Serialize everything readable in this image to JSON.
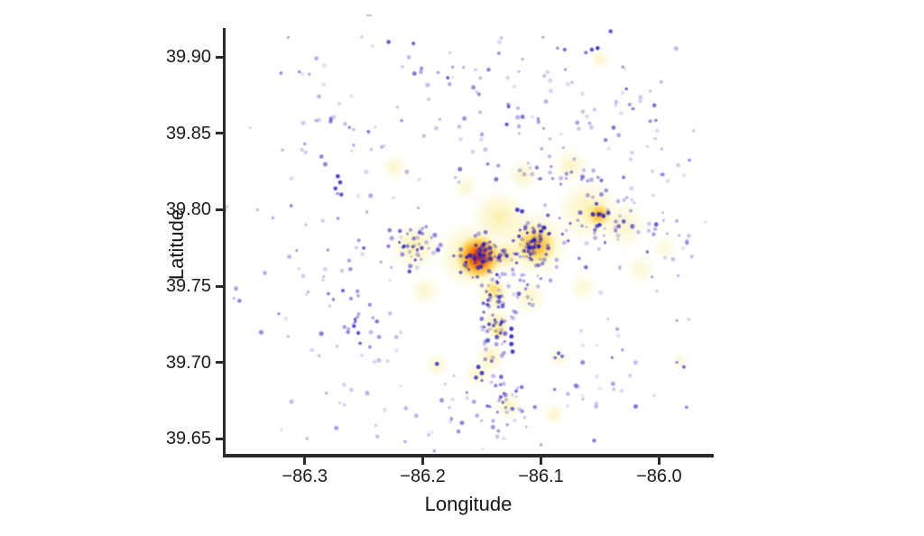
{
  "chart_data": {
    "type": "scatter",
    "subtype": "scatter-with-density-heatmap",
    "title": "",
    "xlabel": "Longitude",
    "ylabel": "Latitude",
    "xlim": [
      -86.367,
      -85.956
    ],
    "ylim": [
      39.64,
      39.918
    ],
    "grid": false,
    "legend": false,
    "xticks": [
      {
        "value": -86.3,
        "label": "−86.3"
      },
      {
        "value": -86.2,
        "label": "−86.2"
      },
      {
        "value": -86.1,
        "label": "−86.1"
      },
      {
        "value": -86.0,
        "label": "−86.0"
      }
    ],
    "yticks": [
      {
        "value": 39.9,
        "label": "39.90"
      },
      {
        "value": 39.85,
        "label": "39.85"
      },
      {
        "value": 39.8,
        "label": "39.80"
      },
      {
        "value": 39.75,
        "label": "39.75"
      },
      {
        "value": 39.7,
        "label": "39.70"
      },
      {
        "value": 39.65,
        "label": "39.65"
      }
    ],
    "point_color": "38,28,196",
    "heat_gradients": {
      "red": [
        [
          0,
          "rgba(200,30,0,0.95)"
        ],
        [
          0.32,
          "rgba(235,88,0,0.92)"
        ],
        [
          0.55,
          "rgba(255,158,10,0.82)"
        ],
        [
          0.8,
          "rgba(255,214,80,0.55)"
        ],
        [
          1,
          "rgba(255,240,160,0)"
        ]
      ],
      "orange": [
        [
          0,
          "rgba(238,140,0,0.85)"
        ],
        [
          0.4,
          "rgba(255,190,40,0.7)"
        ],
        [
          0.75,
          "rgba(255,226,110,0.45)"
        ],
        [
          1,
          "rgba(255,240,160,0)"
        ]
      ],
      "amber": [
        [
          0,
          "rgba(248,195,40,0.6)"
        ],
        [
          0.55,
          "rgba(255,230,120,0.4)"
        ],
        [
          1,
          "rgba(255,242,170,0)"
        ]
      ],
      "yellow": [
        [
          0,
          "rgba(250,233,140,1)"
        ],
        [
          0.55,
          "rgba(252,240,170,0.55)"
        ],
        [
          1,
          "rgba(255,245,190,0)"
        ]
      ]
    },
    "heat_blobs": [
      {
        "lon": -86.224,
        "lat": 39.828,
        "r": 0.012,
        "kind": "yellow",
        "a": 0.5
      },
      {
        "lon": -86.207,
        "lat": 39.776,
        "r": 0.022,
        "kind": "yellow",
        "a": 0.7
      },
      {
        "lon": -86.198,
        "lat": 39.747,
        "r": 0.014,
        "kind": "yellow",
        "a": 0.5
      },
      {
        "lon": -86.188,
        "lat": 39.698,
        "r": 0.011,
        "kind": "yellow",
        "a": 0.5
      },
      {
        "lon": -86.16,
        "lat": 39.77,
        "r": 0.03,
        "kind": "yellow",
        "a": 0.85
      },
      {
        "lon": -86.135,
        "lat": 39.795,
        "r": 0.025,
        "kind": "yellow",
        "a": 0.75
      },
      {
        "lon": -86.105,
        "lat": 39.778,
        "r": 0.03,
        "kind": "yellow",
        "a": 0.85
      },
      {
        "lon": -86.14,
        "lat": 39.745,
        "r": 0.016,
        "kind": "yellow",
        "a": 0.8
      },
      {
        "lon": -86.138,
        "lat": 39.726,
        "r": 0.014,
        "kind": "yellow",
        "a": 0.8
      },
      {
        "lon": -86.143,
        "lat": 39.703,
        "r": 0.013,
        "kind": "yellow",
        "a": 0.7
      },
      {
        "lon": -86.153,
        "lat": 39.692,
        "r": 0.012,
        "kind": "yellow",
        "a": 0.55
      },
      {
        "lon": -86.128,
        "lat": 39.672,
        "r": 0.013,
        "kind": "yellow",
        "a": 0.6
      },
      {
        "lon": -86.089,
        "lat": 39.666,
        "r": 0.01,
        "kind": "yellow",
        "a": 0.5
      },
      {
        "lon": -86.085,
        "lat": 39.703,
        "r": 0.009,
        "kind": "yellow",
        "a": 0.45
      },
      {
        "lon": -86.06,
        "lat": 39.8,
        "r": 0.028,
        "kind": "yellow",
        "a": 0.7
      },
      {
        "lon": -86.03,
        "lat": 39.79,
        "r": 0.022,
        "kind": "yellow",
        "a": 0.5
      },
      {
        "lon": -86.016,
        "lat": 39.761,
        "r": 0.014,
        "kind": "yellow",
        "a": 0.4
      },
      {
        "lon": -85.995,
        "lat": 39.775,
        "r": 0.012,
        "kind": "yellow",
        "a": 0.35
      },
      {
        "lon": -86.05,
        "lat": 39.899,
        "r": 0.009,
        "kind": "yellow",
        "a": 0.5
      },
      {
        "lon": -86.075,
        "lat": 39.829,
        "r": 0.016,
        "kind": "yellow",
        "a": 0.55
      },
      {
        "lon": -86.115,
        "lat": 39.823,
        "r": 0.014,
        "kind": "yellow",
        "a": 0.55
      },
      {
        "lon": -85.982,
        "lat": 39.701,
        "r": 0.008,
        "kind": "yellow",
        "a": 0.4
      },
      {
        "lon": -86.065,
        "lat": 39.749,
        "r": 0.012,
        "kind": "yellow",
        "a": 0.45
      },
      {
        "lon": -86.164,
        "lat": 39.815,
        "r": 0.012,
        "kind": "yellow",
        "a": 0.45
      },
      {
        "lon": -86.11,
        "lat": 39.743,
        "r": 0.016,
        "kind": "yellow",
        "a": 0.55
      },
      {
        "lon": -86.14,
        "lat": 39.748,
        "r": 0.009,
        "kind": "amber",
        "a": 0.5
      },
      {
        "lon": -86.136,
        "lat": 39.72,
        "r": 0.008,
        "kind": "amber",
        "a": 0.5
      },
      {
        "lon": -86.131,
        "lat": 39.77,
        "r": 0.014,
        "kind": "amber",
        "a": 0.55
      },
      {
        "lon": -86.104,
        "lat": 39.777,
        "r": 0.018,
        "kind": "orange",
        "a": 0.9
      },
      {
        "lon": -86.051,
        "lat": 39.797,
        "r": 0.011,
        "kind": "orange",
        "a": 0.85
      },
      {
        "lon": -86.153,
        "lat": 39.769,
        "r": 0.02,
        "kind": "red",
        "a": 1.0
      }
    ],
    "point_clusters": [
      {
        "c": [
          -86.153,
          39.769
        ],
        "s": [
          0.01,
          0.008
        ],
        "n": 55,
        "a": [
          0.35,
          0.95
        ]
      },
      {
        "c": [
          -86.105,
          39.777
        ],
        "s": [
          0.012,
          0.009
        ],
        "n": 70,
        "a": [
          0.3,
          0.95
        ]
      },
      {
        "c": [
          -86.045,
          39.79
        ],
        "s": [
          0.022,
          0.012
        ],
        "n": 55,
        "a": [
          0.2,
          0.8
        ]
      },
      {
        "c": [
          -86.09,
          39.824
        ],
        "s": [
          0.035,
          0.004
        ],
        "n": 30,
        "a": [
          0.25,
          0.7
        ]
      },
      {
        "c": [
          -86.139,
          39.725
        ],
        "s": [
          0.007,
          0.022
        ],
        "n": 75,
        "a": [
          0.25,
          0.9
        ]
      },
      {
        "c": [
          -86.206,
          39.776
        ],
        "s": [
          0.011,
          0.011
        ],
        "n": 45,
        "a": [
          0.2,
          0.85
        ]
      },
      {
        "c": [
          -86.27,
          39.85
        ],
        "s": [
          0.04,
          0.035
        ],
        "n": 50,
        "a": [
          0.15,
          0.6
        ]
      },
      {
        "c": [
          -86.12,
          39.87
        ],
        "s": [
          0.05,
          0.025
        ],
        "n": 45,
        "a": [
          0.15,
          0.7
        ]
      },
      {
        "c": [
          -86.3,
          39.745
        ],
        "s": [
          0.03,
          0.04
        ],
        "n": 38,
        "a": [
          0.15,
          0.6
        ]
      },
      {
        "c": [
          -86.253,
          39.728
        ],
        "s": [
          0.02,
          0.02
        ],
        "n": 35,
        "a": [
          0.2,
          0.9
        ]
      },
      {
        "c": [
          -86.16,
          39.665
        ],
        "s": [
          0.05,
          0.018
        ],
        "n": 40,
        "a": [
          0.15,
          0.6
        ]
      },
      {
        "c": [
          -86.045,
          39.69
        ],
        "s": [
          0.03,
          0.025
        ],
        "n": 30,
        "a": [
          0.15,
          0.7
        ]
      },
      {
        "c": [
          -85.99,
          39.79
        ],
        "s": [
          0.015,
          0.03
        ],
        "n": 25,
        "a": [
          0.15,
          0.5
        ]
      },
      {
        "c": [
          -86.115,
          39.75
        ],
        "s": [
          0.012,
          0.01
        ],
        "n": 30,
        "a": [
          0.2,
          0.7
        ]
      },
      {
        "c": [
          -86.17,
          39.885
        ],
        "s": [
          0.03,
          0.02
        ],
        "n": 25,
        "a": [
          0.15,
          0.6
        ]
      },
      {
        "c": [
          -86.128,
          39.673
        ],
        "s": [
          0.008,
          0.008
        ],
        "n": 18,
        "a": [
          0.2,
          0.8
        ]
      },
      {
        "c": [
          -86.03,
          39.86
        ],
        "s": [
          0.03,
          0.02
        ],
        "n": 30,
        "a": [
          0.15,
          0.6
        ]
      }
    ],
    "points": [
      [
        -86.125,
        39.722,
        0.95,
        3
      ],
      [
        -86.125,
        39.717,
        0.95,
        3
      ],
      [
        -86.125,
        39.712,
        0.95,
        3
      ],
      [
        -86.124,
        39.707,
        0.9,
        3
      ],
      [
        -86.056,
        39.797,
        0.95,
        3
      ],
      [
        -86.051,
        39.797,
        0.95,
        3
      ],
      [
        -86.047,
        39.796,
        0.9,
        3
      ],
      [
        -86.043,
        39.798,
        0.85,
        3
      ],
      [
        -86.053,
        39.804,
        0.8,
        2.6
      ],
      [
        -86.05,
        39.79,
        0.6,
        2.4
      ],
      [
        -86.057,
        39.905,
        0.85,
        2.8
      ],
      [
        -86.052,
        39.906,
        0.9,
        2.8
      ],
      [
        -86.062,
        39.903,
        0.7,
        2.4
      ],
      [
        -86.08,
        39.905,
        0.7,
        2.6
      ],
      [
        -86.086,
        39.906,
        0.55,
        2.2
      ],
      [
        -86.041,
        39.917,
        0.8,
        2.8
      ],
      [
        -86.229,
        39.91,
        0.8,
        2.8
      ],
      [
        -86.208,
        39.909,
        0.7,
        2.6
      ],
      [
        -86.314,
        39.913,
        0.35,
        2.2
      ],
      [
        -86.272,
        39.822,
        0.9,
        2.9
      ],
      [
        -86.27,
        39.818,
        0.9,
        2.9
      ],
      [
        -86.274,
        39.814,
        0.85,
        2.8
      ],
      [
        -86.269,
        39.81,
        0.8,
        2.8
      ],
      [
        -86.153,
        39.697,
        0.9,
        3
      ],
      [
        -86.15,
        39.693,
        0.9,
        3
      ],
      [
        -86.155,
        39.69,
        0.85,
        2.8
      ],
      [
        -86.085,
        39.706,
        0.75,
        2.6
      ],
      [
        -86.082,
        39.704,
        0.7,
        2.4
      ],
      [
        -86.088,
        39.703,
        0.6,
        2.4
      ],
      [
        -86.188,
        39.699,
        0.85,
        2.8
      ],
      [
        -85.979,
        39.697,
        0.7,
        2.5
      ],
      [
        -85.985,
        39.7,
        0.5,
        2.2
      ],
      [
        -86.129,
        39.856,
        0.8,
        2.6
      ],
      [
        -86.12,
        39.8,
        0.9,
        3
      ],
      [
        -86.116,
        39.799,
        0.9,
        3
      ],
      [
        -86.152,
        39.771,
        0.95,
        3.1
      ],
      [
        -86.156,
        39.768,
        0.95,
        3.1
      ],
      [
        -86.149,
        39.766,
        0.9,
        3
      ],
      [
        -86.106,
        39.78,
        0.95,
        3.1
      ],
      [
        -86.102,
        39.776,
        0.95,
        3
      ],
      [
        -86.11,
        39.775,
        0.9,
        3
      ],
      [
        -86.145,
        39.83,
        0.6,
        2.4
      ],
      [
        -86.25,
        39.775,
        0.7,
        2.5
      ],
      [
        -86.28,
        39.745,
        0.6,
        2.4
      ],
      [
        -86.136,
        39.655,
        0.5,
        2.3
      ],
      [
        -86.1,
        39.646,
        0.4,
        2.2
      ],
      [
        -86.215,
        39.648,
        0.4,
        2.2
      ],
      [
        -86.298,
        39.65,
        0.35,
        2.2
      ],
      [
        -86.36,
        39.742,
        0.3,
        2.2
      ],
      [
        -86.34,
        39.8,
        0.3,
        2.2
      ]
    ],
    "rng_seed": 12345
  },
  "annotations": {
    "stray_mark": ""
  }
}
